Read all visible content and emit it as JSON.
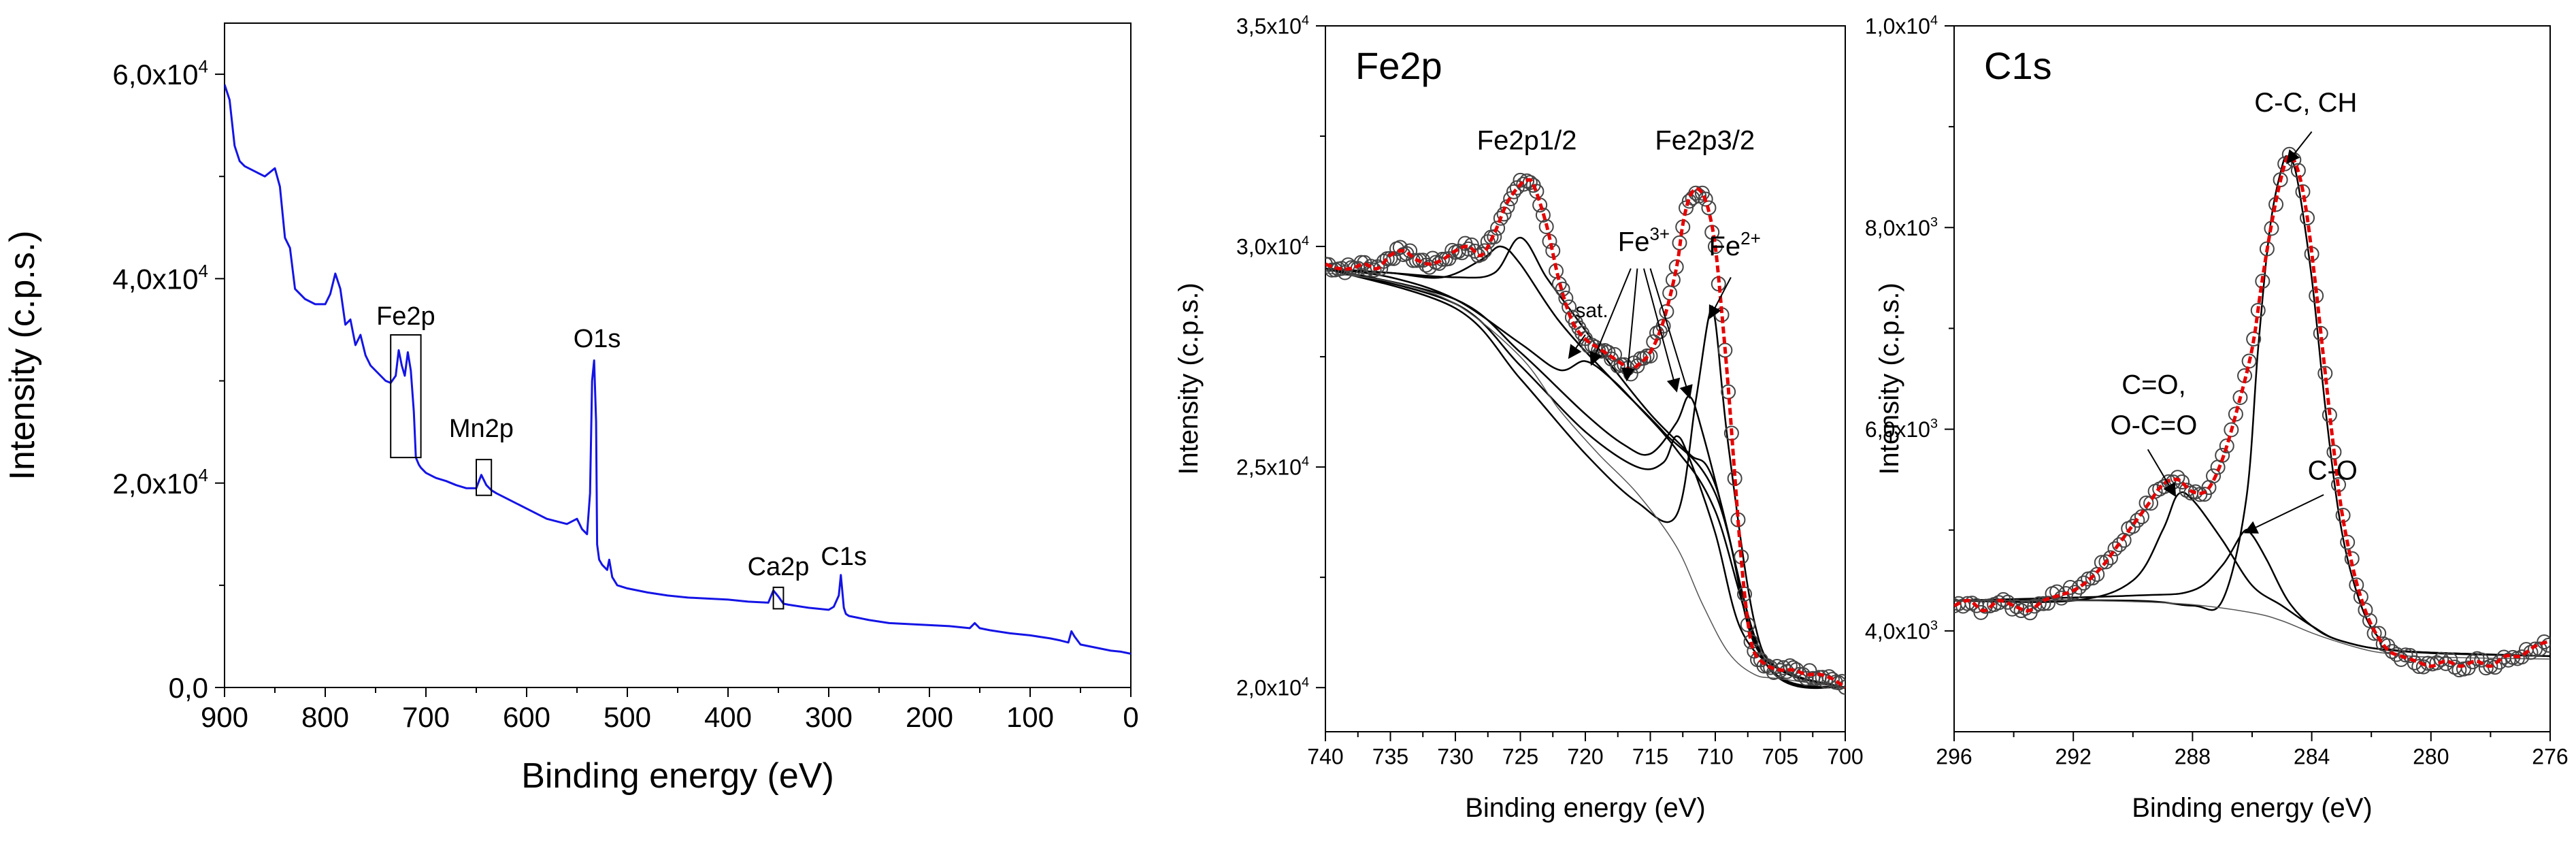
{
  "chart_data": [
    {
      "id": "survey",
      "type": "line",
      "title": "",
      "xlabel": "Binding energy (eV)",
      "ylabel": "Intensity (c.p.s.)",
      "xlim": [
        900,
        0
      ],
      "ylim": [
        0,
        65000
      ],
      "x_ticks": [
        900,
        800,
        700,
        600,
        500,
        400,
        300,
        200,
        100,
        0
      ],
      "x_tick_labels": [
        "900",
        "800",
        "700",
        "600",
        "500",
        "400",
        "300",
        "200",
        "100",
        "0"
      ],
      "y_ticks": [
        0,
        20000,
        40000,
        60000
      ],
      "y_tick_labels": [
        {
          "mantissa": "0,0",
          "exp": ""
        },
        {
          "mantissa": "2,0x10",
          "exp": "4"
        },
        {
          "mantissa": "4,0x10",
          "exp": "4"
        },
        {
          "mantissa": "6,0x10",
          "exp": "4"
        }
      ],
      "series": [
        {
          "name": "survey spectrum",
          "color": "#1414e6",
          "x": [
            900,
            895,
            890,
            885,
            880,
            870,
            860,
            850,
            845,
            840,
            835,
            830,
            825,
            820,
            810,
            800,
            795,
            790,
            785,
            780,
            775,
            770,
            765,
            760,
            755,
            750,
            740,
            735,
            730,
            727,
            724,
            721,
            718,
            715,
            712,
            710,
            707,
            705,
            700,
            690,
            680,
            670,
            660,
            650,
            645,
            640,
            635,
            630,
            620,
            600,
            580,
            560,
            550,
            545,
            540,
            537,
            535,
            533,
            531,
            530,
            528,
            525,
            520,
            518,
            515,
            510,
            500,
            490,
            480,
            460,
            440,
            420,
            400,
            380,
            360,
            355,
            350,
            345,
            340,
            320,
            300,
            295,
            290,
            288,
            285,
            283,
            280,
            270,
            260,
            240,
            220,
            200,
            180,
            160,
            155,
            150,
            140,
            120,
            100,
            80,
            70,
            62,
            59,
            56,
            50,
            40,
            30,
            20,
            10,
            0
          ],
          "y": [
            59000,
            57500,
            53000,
            51500,
            51000,
            50500,
            50000,
            50800,
            49000,
            44000,
            43000,
            39000,
            38500,
            38000,
            37500,
            37500,
            38500,
            40500,
            39000,
            35500,
            36000,
            33500,
            34500,
            32500,
            31500,
            31000,
            30000,
            29800,
            30500,
            33000,
            31500,
            30500,
            32800,
            31000,
            27000,
            22500,
            21800,
            21500,
            21000,
            20500,
            20200,
            19800,
            19500,
            19500,
            20800,
            19800,
            19300,
            19000,
            18500,
            17500,
            16500,
            16000,
            16500,
            15500,
            15000,
            19000,
            30000,
            32000,
            26000,
            14000,
            12500,
            12000,
            11500,
            12500,
            10800,
            10000,
            9700,
            9500,
            9300,
            9000,
            8800,
            8700,
            8600,
            8400,
            8300,
            9500,
            8900,
            8200,
            8100,
            7800,
            7600,
            7900,
            9000,
            11000,
            7800,
            7200,
            7000,
            6800,
            6600,
            6300,
            6200,
            6100,
            6000,
            5800,
            6300,
            5800,
            5600,
            5300,
            5100,
            4800,
            4600,
            4400,
            5500,
            5000,
            4200,
            4000,
            3800,
            3600,
            3500,
            3300
          ]
        }
      ],
      "annotations": [
        {
          "text": "Fe2p",
          "x": 720,
          "y": 35500
        },
        {
          "text": "O1s",
          "x": 530,
          "y": 33300
        },
        {
          "text": "Mn2p",
          "x": 645,
          "y": 24500
        },
        {
          "text": "Ca2p",
          "x": 350,
          "y": 11000
        },
        {
          "text": "C1s",
          "x": 285,
          "y": 12000
        }
      ],
      "boxes": [
        {
          "label": "Fe2p",
          "x": [
            735,
            705
          ],
          "y": [
            22500,
            34500
          ]
        },
        {
          "label": "Mn2p",
          "x": [
            650,
            635
          ],
          "y": [
            18800,
            22300
          ]
        },
        {
          "label": "Ca2p",
          "x": [
            355,
            345
          ],
          "y": [
            7700,
            9800
          ]
        }
      ]
    },
    {
      "id": "fe2p",
      "type": "scatter",
      "title": "Fe2p",
      "xlabel": "Binding energy (eV)",
      "ylabel": "Intensity (c.p.s.)",
      "xlim": [
        740,
        700
      ],
      "ylim": [
        19000,
        35000
      ],
      "x_ticks": [
        740,
        735,
        730,
        725,
        720,
        715,
        710,
        705,
        700
      ],
      "x_tick_labels": [
        "740",
        "735",
        "730",
        "725",
        "720",
        "715",
        "710",
        "705",
        "700"
      ],
      "y_ticks": [
        20000,
        25000,
        30000,
        35000
      ],
      "y_tick_labels": [
        {
          "mantissa": "2,0x10",
          "exp": "4"
        },
        {
          "mantissa": "2,5x10",
          "exp": "4"
        },
        {
          "mantissa": "3,0x10",
          "exp": "4"
        },
        {
          "mantissa": "3,5x10",
          "exp": "4"
        }
      ],
      "experimental": {
        "name": "experimental",
        "x": [
          740,
          739,
          738,
          737,
          736,
          735,
          734,
          733,
          732,
          731,
          730,
          729,
          728,
          727,
          726,
          725,
          724.5,
          724,
          723,
          722,
          721,
          720,
          719,
          718,
          717,
          716.5,
          716,
          715,
          714,
          713,
          712.5,
          712,
          711.5,
          711,
          710.5,
          710,
          709.5,
          709,
          708.5,
          708,
          707.5,
          707,
          706,
          705,
          704,
          703,
          702,
          701,
          700
        ],
        "y": [
          29600,
          29500,
          29500,
          29600,
          29500,
          29800,
          29900,
          29700,
          29600,
          29700,
          29900,
          30000,
          29800,
          30300,
          31000,
          31400,
          31500,
          31400,
          30500,
          29200,
          28300,
          27900,
          27700,
          27500,
          27300,
          27200,
          27300,
          27600,
          28300,
          29500,
          30500,
          31100,
          31300,
          31200,
          30800,
          30000,
          28500,
          26800,
          24800,
          22900,
          21500,
          20800,
          20500,
          20400,
          20400,
          20300,
          20300,
          20200,
          20000
        ]
      },
      "envelope_color": "#e60000",
      "components": [
        {
          "name": "Fe2p1/2 component",
          "x": [
            740,
            735,
            730,
            727,
            725,
            723,
            721,
            718,
            715,
            712,
            710,
            706,
            700
          ],
          "y": [
            29500,
            29400,
            29300,
            29400,
            30200,
            29300,
            28500,
            27300,
            26200,
            25300,
            24600,
            20500,
            20000
          ]
        },
        {
          "name": "Fe2p1/2 component 2",
          "x": [
            740,
            735,
            731,
            728,
            726.5,
            725,
            722,
            718,
            714,
            710,
            706,
            700
          ],
          "y": [
            29500,
            29400,
            29300,
            29700,
            30000,
            29600,
            28300,
            27000,
            25800,
            24400,
            20500,
            20000
          ]
        },
        {
          "name": "sat. component",
          "x": [
            740,
            735,
            730,
            725,
            722,
            720,
            718,
            716,
            713,
            710,
            706,
            700
          ],
          "y": [
            29500,
            29300,
            28800,
            27800,
            27200,
            27400,
            27000,
            26400,
            25400,
            24000,
            20500,
            20000
          ]
        },
        {
          "name": "Fe3+ component",
          "x": [
            740,
            730,
            725,
            720,
            717,
            715,
            713,
            712,
            711,
            709,
            707,
            704,
            700
          ],
          "y": [
            29500,
            28800,
            27600,
            26200,
            25500,
            25300,
            26000,
            26600,
            25800,
            23500,
            21000,
            20300,
            20000
          ]
        },
        {
          "name": "Fe3+ component 2",
          "x": [
            740,
            730,
            725,
            720,
            716,
            714,
            713,
            712,
            710,
            708,
            705,
            700
          ],
          "y": [
            29500,
            28700,
            27300,
            25800,
            25000,
            25100,
            25700,
            25200,
            23500,
            21300,
            20400,
            20000
          ]
        },
        {
          "name": "Fe2+ component",
          "x": [
            740,
            730,
            725,
            720,
            716,
            713,
            711.5,
            710.5,
            710,
            709,
            707,
            705,
            700
          ],
          "y": [
            29500,
            28600,
            27000,
            25300,
            24200,
            23900,
            26500,
            28400,
            28300,
            25500,
            21500,
            20400,
            20000
          ]
        },
        {
          "name": "background",
          "x": [
            740,
            735,
            730,
            725,
            722,
            719,
            716,
            713,
            711,
            709,
            707,
            705,
            700
          ],
          "y": [
            29400,
            29200,
            28700,
            27500,
            26300,
            25300,
            24400,
            23200,
            21900,
            20800,
            20300,
            20200,
            20000
          ]
        }
      ],
      "annotations": [
        {
          "text": "Fe2p1/2",
          "x": 724.5,
          "y": 32200
        },
        {
          "text": "Fe2p3/2",
          "x": 710.8,
          "y": 32200
        },
        {
          "text": "sat.",
          "x": 719.5,
          "y": 28400
        },
        {
          "text": "Fe",
          "sup": "3+",
          "x": 715.5,
          "y": 29900
        },
        {
          "text": "Fe",
          "sup": "2+",
          "x": 708.5,
          "y": 29800
        }
      ]
    },
    {
      "id": "c1s",
      "type": "scatter",
      "title": "C1s",
      "xlabel": "Binding energy (eV)",
      "ylabel": "Intensity (c.p.s.)",
      "xlim": [
        296,
        276
      ],
      "ylim": [
        3000,
        10000
      ],
      "x_ticks": [
        296,
        292,
        288,
        284,
        280,
        276
      ],
      "x_tick_labels": [
        "296",
        "292",
        "288",
        "284",
        "280",
        "276"
      ],
      "y_ticks": [
        4000,
        6000,
        8000,
        10000
      ],
      "y_tick_labels": [
        {
          "mantissa": "4,0x10",
          "exp": "3"
        },
        {
          "mantissa": "6,0x10",
          "exp": "3"
        },
        {
          "mantissa": "8,0x10",
          "exp": "3"
        },
        {
          "mantissa": "1,0x10",
          "exp": "4"
        }
      ],
      "experimental": {
        "name": "experimental",
        "x": [
          296,
          295.5,
          295,
          294.5,
          294,
          293.5,
          293,
          292.5,
          292,
          291.5,
          291,
          290.5,
          290,
          289.5,
          289,
          288.5,
          288,
          287.5,
          287,
          286.5,
          286,
          285.7,
          285.4,
          285.1,
          284.8,
          284.5,
          284.2,
          283.9,
          283.6,
          283.3,
          283,
          282.6,
          282.2,
          281.8,
          281.4,
          281,
          280.5,
          280,
          279.5,
          279,
          278.5,
          278,
          277.5,
          277,
          276.5,
          276
        ],
        "y": [
          4250,
          4300,
          4200,
          4300,
          4250,
          4200,
          4300,
          4350,
          4400,
          4500,
          4650,
          4850,
          5050,
          5250,
          5450,
          5500,
          5380,
          5400,
          5700,
          6200,
          6800,
          7400,
          7950,
          8400,
          8700,
          8600,
          8200,
          7500,
          6700,
          5900,
          5200,
          4600,
          4200,
          3950,
          3800,
          3750,
          3700,
          3650,
          3700,
          3650,
          3700,
          3650,
          3750,
          3750,
          3850,
          3900
        ]
      },
      "envelope_color": "#e60000",
      "components": [
        {
          "name": "C=O, O-C=O component",
          "x": [
            296,
            292,
            290,
            289,
            288.5,
            288,
            287,
            286,
            285,
            284,
            283,
            281,
            276
          ],
          "y": [
            4300,
            4300,
            4500,
            5000,
            5350,
            5300,
            4900,
            4450,
            4250,
            4050,
            3900,
            3800,
            3750
          ]
        },
        {
          "name": "C-O component",
          "x": [
            296,
            290,
            288,
            287,
            286.3,
            286,
            285.5,
            284.8,
            284,
            283,
            281,
            276
          ],
          "y": [
            4300,
            4350,
            4400,
            4650,
            4980,
            4950,
            4700,
            4300,
            4050,
            3900,
            3800,
            3750
          ]
        },
        {
          "name": "C-C, CH component",
          "x": [
            296,
            290,
            288,
            287,
            286.2,
            285.8,
            285.4,
            285,
            284.8,
            284.5,
            284,
            283.5,
            283,
            282.4,
            281.8,
            281,
            276
          ],
          "y": [
            4300,
            4300,
            4250,
            4300,
            5300,
            6800,
            8000,
            8600,
            8700,
            8500,
            7500,
            6100,
            5000,
            4300,
            3950,
            3800,
            3750
          ]
        },
        {
          "name": "background",
          "x": [
            296,
            292,
            290,
            288,
            286,
            285,
            284,
            283,
            282,
            281,
            280,
            276
          ],
          "y": [
            4300,
            4300,
            4290,
            4260,
            4180,
            4100,
            3980,
            3880,
            3800,
            3760,
            3740,
            3720
          ]
        }
      ],
      "annotations": [
        {
          "text": "C-C, CH",
          "x": 284.2,
          "y": 9150
        },
        {
          "text": "C=O,",
          "x": 289.3,
          "y": 6350
        },
        {
          "text": "O-C=O",
          "x": 289.3,
          "y": 5950
        },
        {
          "text": "C-O",
          "x": 283.3,
          "y": 5500
        }
      ]
    }
  ]
}
